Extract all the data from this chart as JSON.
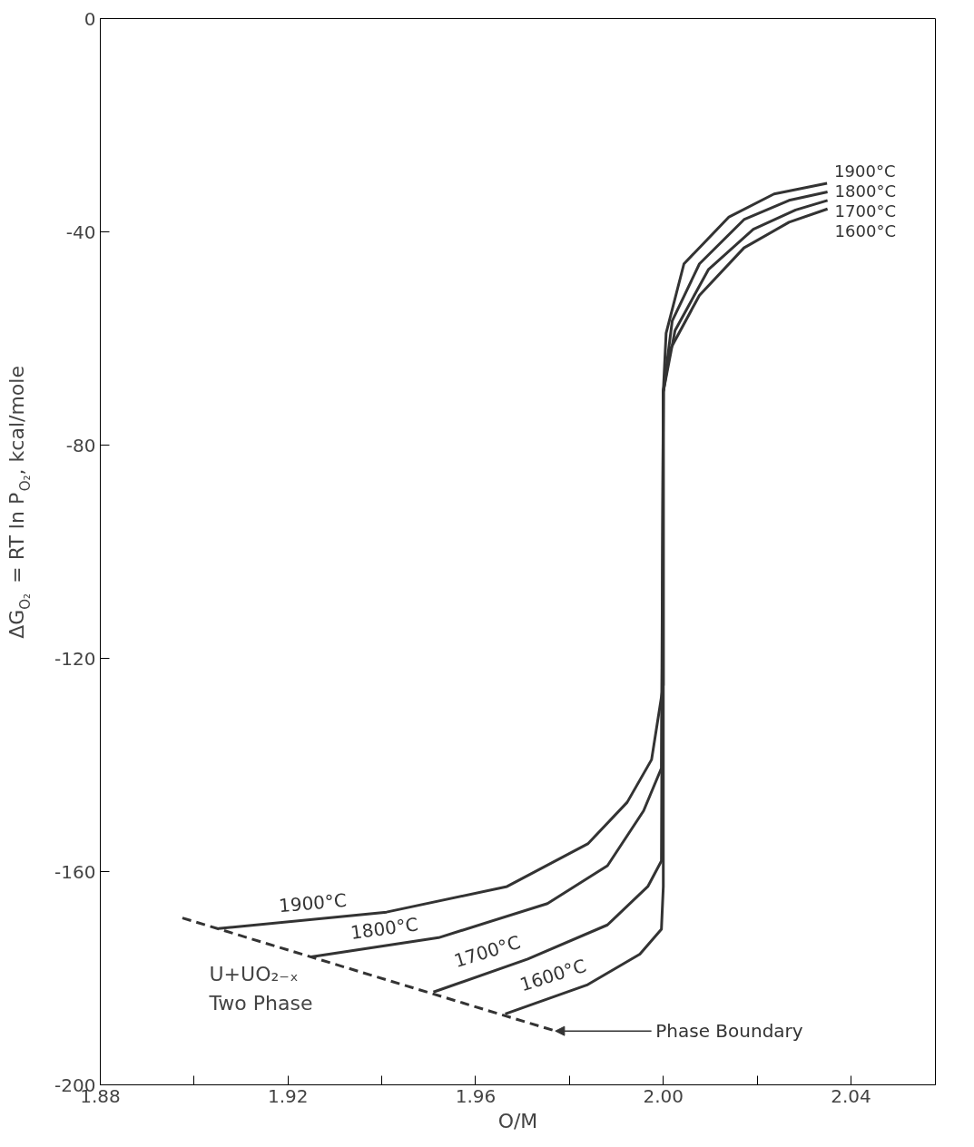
{
  "chart_data": {
    "type": "line",
    "xlabel": "O/M",
    "ylabel": "ΔG$_{O₂}$ = RT ln P$_{O₂}$, kcal/mole",
    "series": [
      {
        "name": "1900°C",
        "color": "#333333",
        "x": [
          1.9052,
          1.941,
          1.9667,
          1.9839,
          1.9923,
          1.9975,
          2.0,
          2.0,
          2.0006,
          2.0044,
          2.014,
          2.0236,
          2.0349
        ],
        "values": [
          -170.7,
          -167.6,
          -162.8,
          -154.8,
          -147,
          -139,
          -125,
          -70,
          -59,
          -46,
          -37.2,
          -32.9,
          -30.9
        ]
      },
      {
        "name": "1800°C",
        "color": "#333333",
        "x": [
          1.9249,
          1.9521,
          1.9753,
          1.9881,
          1.9958,
          1.9996,
          2.0,
          2.0019,
          2.0077,
          2.0172,
          2.0268,
          2.035
        ],
        "values": [
          -176,
          -172.4,
          -166,
          -158.9,
          -148.6,
          -140.6,
          -70,
          -56.7,
          -46,
          -37.7,
          -34.1,
          -32.5
        ]
      },
      {
        "name": "1700°C",
        "color": "#333333",
        "x": [
          1.951,
          1.9711,
          1.9881,
          1.9967,
          1.9996,
          2.0,
          2.0025,
          2.0096,
          2.0192,
          2.0282,
          2.035
        ],
        "values": [
          -182.6,
          -176.4,
          -170,
          -162.8,
          -158,
          -70,
          -58.5,
          -47.1,
          -39.5,
          -35.9,
          -34.1
        ]
      },
      {
        "name": "1600°C",
        "color": "#333333",
        "x": [
          1.9663,
          1.9839,
          1.995,
          1.9996,
          2.0,
          2.0,
          2.0015,
          2.0077,
          2.0172,
          2.0268,
          2.035
        ],
        "values": [
          -186.7,
          -181.2,
          -175.5,
          -170.8,
          -162.8,
          -70,
          -62,
          -51.9,
          -43,
          -38.2,
          -35.7
        ]
      },
      {
        "name": "Phase Boundary",
        "color": "#333333",
        "line_style": "dashed",
        "x": [
          1.8975,
          1.977
        ],
        "values": [
          -168.7,
          -189.9
        ]
      }
    ],
    "annotations": [
      "U+UO₂₋ₓ",
      "Two Phase"
    ],
    "xlim": [
      1.88,
      2.058
    ],
    "ylim": [
      -200,
      0
    ],
    "xticks": [
      1.88,
      {
        "value": 1.9,
        "label": null
      },
      1.92,
      {
        "value": 1.94,
        "label": null
      },
      1.96,
      {
        "value": 1.98,
        "label": null
      },
      {
        "value": 2.0,
        "label": "2.00"
      },
      {
        "value": 2.02,
        "label": null
      },
      2.04
    ],
    "yticks": [
      0,
      -40,
      -80,
      -120,
      -160,
      -200
    ],
    "grid": false,
    "line_style": "solid",
    "marker": "none"
  }
}
